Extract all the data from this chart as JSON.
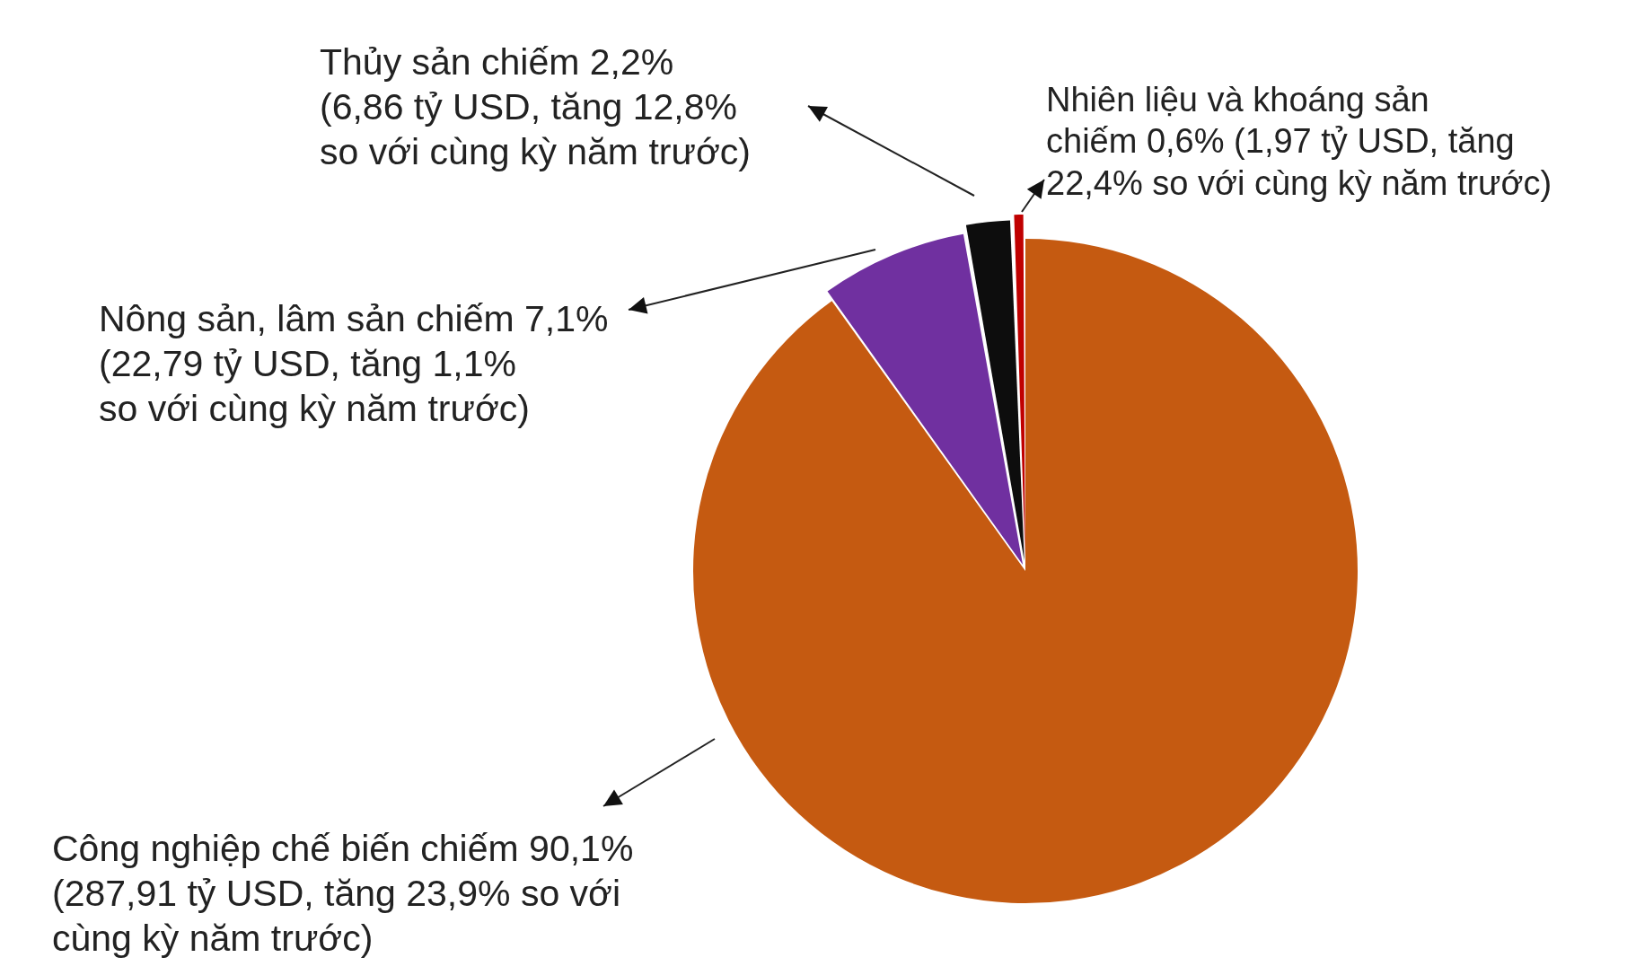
{
  "chart_data": {
    "type": "pie",
    "categories": [
      "Công nghiệp chế biến chiếm 90,1%\n(287,91 tỷ USD, tăng 23,9% so với\ncùng kỳ năm trước)",
      "Nông sản, lâm sản chiếm 7,1%\n(22,79 tỷ USD, tăng 1,1%\nso với cùng kỳ năm trước)",
      "Thủy sản chiếm 2,2%\n(6,86 tỷ USD, tăng 12,8%\nso với cùng kỳ năm trước)",
      "Nhiên liệu và khoáng sản\nchiếm 0,6% (1,97 tỷ USD, tăng\n22,4% so với cùng kỳ năm trước)"
    ],
    "values": [
      90.1,
      7.1,
      2.2,
      0.6
    ],
    "colors": [
      "#c55a11",
      "#7030a0",
      "#0d0d0d",
      "#c00000"
    ]
  }
}
